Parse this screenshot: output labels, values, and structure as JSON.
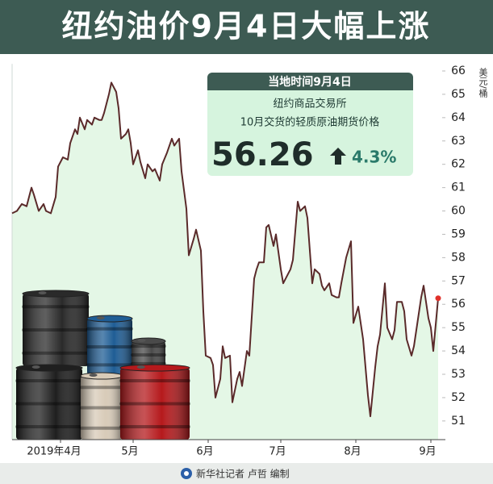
{
  "header": {
    "title": "纽约油价9月4日大幅上涨"
  },
  "info_box": {
    "date": "当地时间9月4日",
    "exchange": "纽约商品交易所",
    "contract": "10月交货的轻质原油期货价格",
    "price": "56.26",
    "change": "4.3%"
  },
  "footer": {
    "credit": "新华社记者 卢哲 编制"
  },
  "chart_data": {
    "type": "line",
    "y_unit": "美元/桶",
    "x": [
      -20,
      -18,
      -16,
      -14,
      -12,
      -11,
      -9,
      -7,
      -6,
      -4,
      -2,
      -1,
      1,
      3,
      4,
      6,
      7,
      8,
      10,
      11,
      13,
      14,
      16,
      17,
      18,
      20,
      21,
      23,
      24,
      25,
      27,
      28,
      29,
      30,
      32,
      33,
      35,
      36,
      38,
      39,
      41,
      42,
      44,
      46,
      47,
      49,
      50,
      52,
      53,
      55,
      56,
      58,
      59,
      60,
      62,
      63,
      64,
      66,
      67,
      68,
      70,
      71,
      73,
      74,
      75,
      77,
      78,
      80,
      81,
      82,
      84,
      85,
      86,
      88,
      89,
      91,
      92,
      94,
      95,
      96,
      98,
      99,
      101,
      102,
      104,
      105,
      107,
      108,
      109,
      111,
      112,
      114,
      115,
      116,
      118,
      120,
      121,
      123,
      124,
      125,
      127,
      128,
      130,
      131,
      132,
      134,
      135,
      137,
      138,
      139,
      141,
      142,
      143,
      145,
      146,
      148,
      149,
      150,
      152,
      153,
      154,
      156
    ],
    "values": [
      59.9,
      60.0,
      60.3,
      60.2,
      61.0,
      60.7,
      60.0,
      60.3,
      60.0,
      59.9,
      60.6,
      61.9,
      62.3,
      62.2,
      62.9,
      63.5,
      63.3,
      64.0,
      63.5,
      63.9,
      63.7,
      64.0,
      63.9,
      63.9,
      64.2,
      65.0,
      65.5,
      65.1,
      64.4,
      63.1,
      63.3,
      63.5,
      62.9,
      62.0,
      62.6,
      62.1,
      61.4,
      62.0,
      61.7,
      61.8,
      61.3,
      62.0,
      62.5,
      63.1,
      62.8,
      63.1,
      61.7,
      60.1,
      58.1,
      58.8,
      59.2,
      58.3,
      55.7,
      53.8,
      53.7,
      53.4,
      52.0,
      52.8,
      54.2,
      53.7,
      53.8,
      51.8,
      52.8,
      53.1,
      52.5,
      54.0,
      53.8,
      57.1,
      57.5,
      57.8,
      57.8,
      59.3,
      59.4,
      58.5,
      59.0,
      57.5,
      56.9,
      57.3,
      57.5,
      57.9,
      60.4,
      60.0,
      60.2,
      59.7,
      56.9,
      57.5,
      57.3,
      56.8,
      56.6,
      56.9,
      56.4,
      56.3,
      56.3,
      56.9,
      58.0,
      58.7,
      55.2,
      55.9,
      55.2,
      54.5,
      52.1,
      51.2,
      53.3,
      54.2,
      54.7,
      56.9,
      55.0,
      54.5,
      54.9,
      56.1,
      56.1,
      55.7,
      54.5,
      53.8,
      54.2,
      55.6,
      56.3,
      56.8,
      55.4,
      55.0,
      54.0,
      56.26
    ],
    "color": "#5a2a2a",
    "fill_color": "#e4f7e6",
    "last_point_color": "#e0302a",
    "xlim": [
      -20,
      159
    ],
    "xticks": [
      {
        "value": 0,
        "label": "2019年4月"
      },
      {
        "value": 30,
        "label": "5月"
      },
      {
        "value": 61,
        "label": "6月"
      },
      {
        "value": 91,
        "label": "7月"
      },
      {
        "value": 122,
        "label": "8月"
      },
      {
        "value": 153,
        "label": "9月"
      }
    ],
    "ylim": [
      50.2,
      66.3
    ],
    "yticks": [
      51,
      52,
      53,
      54,
      55,
      56,
      57,
      58,
      59,
      60,
      61,
      62,
      63,
      64,
      65,
      66
    ]
  }
}
